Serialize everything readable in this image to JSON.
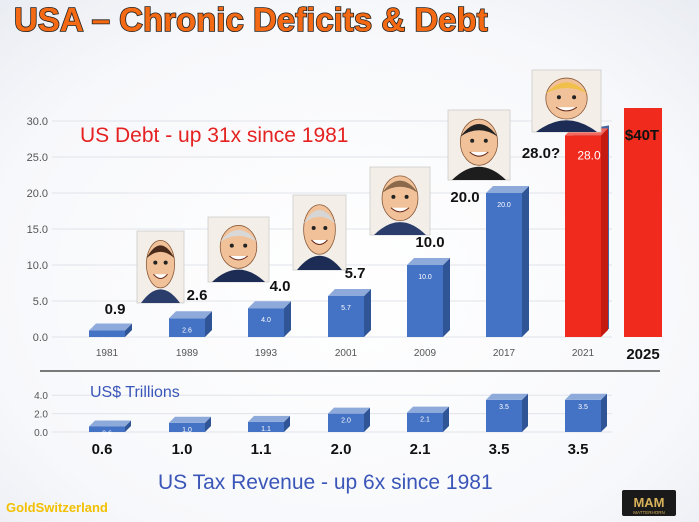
{
  "title": "USA – Chronic Deficits & Debt",
  "brand_left": "GoldSwitzerland",
  "brand_right": "MAM",
  "brand_right_sub": "MATTERHORN",
  "colors": {
    "title_fill": "#f46a14",
    "title_stroke": "#222222",
    "bar_front": "#4472c4",
    "bar_side": "#2f5597",
    "bar_top": "#8eaadb",
    "bar_red": "#f02a1c",
    "bar_red_side": "#c41a10",
    "debt_caption": "#e52222",
    "tax_caption": "#3a56b8",
    "axis_text": "#555555",
    "brand_left": "#f2c000"
  },
  "chart_data": [
    {
      "type": "bar",
      "title": "",
      "caption": "US Debt  -  up 31x since 1981",
      "categories": [
        "1981",
        "1989",
        "1993",
        "2001",
        "2009",
        "2017",
        "2021",
        "2025"
      ],
      "values": [
        0.9,
        2.6,
        4.0,
        5.7,
        10.0,
        20.0,
        28.0,
        40.0
      ],
      "value_labels": [
        "0.9",
        "2.6",
        "4.0",
        "5.7",
        "10.0",
        "20.0",
        "28.0?",
        "$40T"
      ],
      "inner_labels": [
        "0.9",
        "2.6",
        "4.0",
        "5.7",
        "10.0",
        "20.0",
        "28.0"
      ],
      "y_ticks": [
        "0.0",
        "5.0",
        "10.0",
        "15.0",
        "20.0",
        "25.0",
        "30.0"
      ],
      "ylim": [
        0,
        30
      ],
      "xlabel": "",
      "ylabel": "",
      "grid": true,
      "portraits": [
        "reagan",
        "bush-sr",
        "clinton",
        "bush-jr",
        "obama",
        "trump"
      ]
    },
    {
      "type": "bar",
      "title": "",
      "ylabel": "US$ Trillions",
      "caption": "US Tax Revenue  -  up 6x since 1981",
      "categories": [
        "1981",
        "1989",
        "1993",
        "2001",
        "2009",
        "2017",
        "2021"
      ],
      "values": [
        0.6,
        1.0,
        1.1,
        2.0,
        2.1,
        3.5,
        3.5
      ],
      "value_labels": [
        "0.6",
        "1.0",
        "1.1",
        "2.0",
        "2.1",
        "3.5",
        "3.5"
      ],
      "y_ticks": [
        "0.0",
        "2.0",
        "4.0"
      ],
      "ylim": [
        0,
        4
      ],
      "xlabel": "",
      "grid": true
    }
  ]
}
